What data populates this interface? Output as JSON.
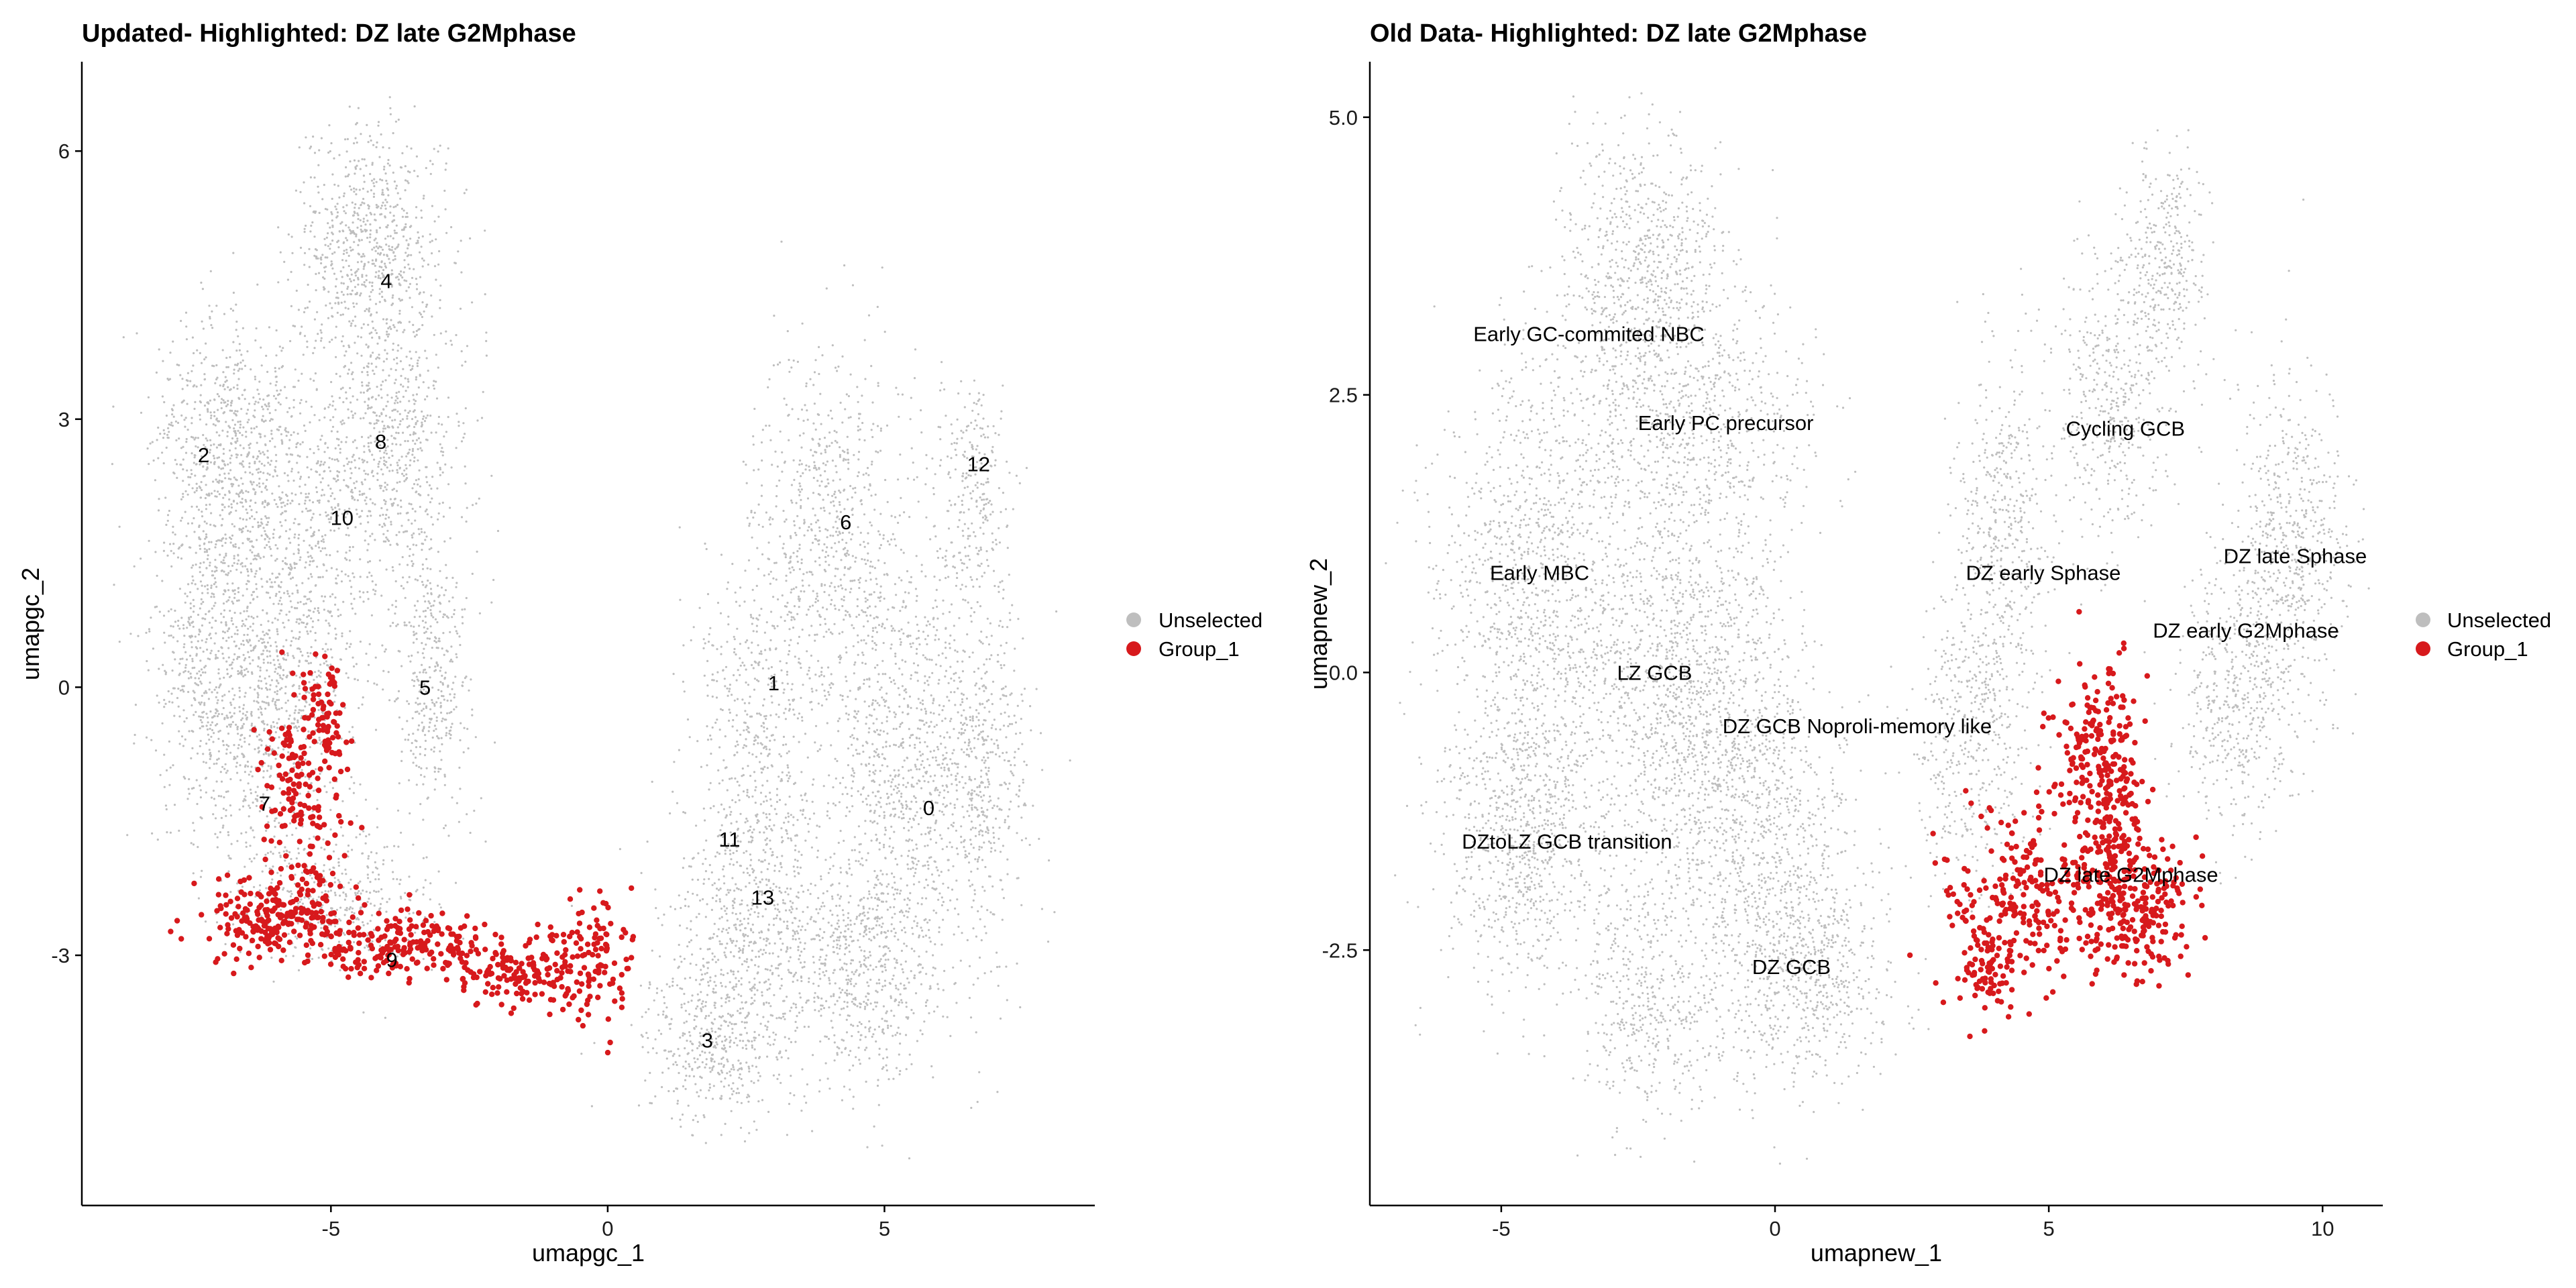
{
  "chart_data": [
    {
      "type": "scatter",
      "title": "Updated- Highlighted: DZ late G2Mphase",
      "xlabel": "umapgc_1",
      "ylabel": "umapgc_2",
      "xlim": [
        -9.5,
        8.8
      ],
      "ylim": [
        -5.8,
        7.0
      ],
      "x_ticks": [
        -5,
        0,
        5
      ],
      "y_ticks": [
        -3,
        0,
        3,
        6
      ],
      "grid": false,
      "legend_position": "right",
      "legend": [
        {
          "label": "Unselected",
          "color": "#BEBEBE"
        },
        {
          "label": "Group_1",
          "color": "#D7191C"
        }
      ],
      "cluster_labels": [
        {
          "text": "0",
          "x": 5.8,
          "y": -1.35
        },
        {
          "text": "1",
          "x": 3.0,
          "y": 0.05
        },
        {
          "text": "2",
          "x": -7.3,
          "y": 2.6
        },
        {
          "text": "3",
          "x": 1.8,
          "y": -3.95
        },
        {
          "text": "4",
          "x": -4.0,
          "y": 4.55
        },
        {
          "text": "5",
          "x": -3.3,
          "y": 0.0
        },
        {
          "text": "6",
          "x": 4.3,
          "y": 1.85
        },
        {
          "text": "7",
          "x": -6.2,
          "y": -1.3
        },
        {
          "text": "8",
          "x": -4.1,
          "y": 2.75
        },
        {
          "text": "9",
          "x": -3.9,
          "y": -3.05
        },
        {
          "text": "10",
          "x": -4.8,
          "y": 1.9
        },
        {
          "text": "11",
          "x": 2.2,
          "y": -1.7
        },
        {
          "text": "12",
          "x": 6.7,
          "y": 2.5
        },
        {
          "text": "13",
          "x": 2.8,
          "y": -2.35
        }
      ],
      "highlight_series": "Group_1",
      "highlight_region": "clusters 7 and 9 (lower-left band)"
    },
    {
      "type": "scatter",
      "title": "Old Data- Highlighted: DZ late G2Mphase",
      "xlabel": "umapnew_1",
      "ylabel": "umapnew_2",
      "xlim": [
        -7.4,
        11.1
      ],
      "ylim": [
        -4.8,
        5.5
      ],
      "x_ticks": [
        -5,
        0,
        5,
        10
      ],
      "y_ticks": [
        -2.5,
        0.0,
        2.5,
        5.0
      ],
      "x_tick_labels": [
        "-5",
        "0",
        "5",
        "10"
      ],
      "y_tick_labels": [
        "-2.5",
        "0.0",
        "2.5",
        "5.0"
      ],
      "grid": false,
      "legend_position": "right",
      "legend": [
        {
          "label": "Unselected",
          "color": "#BEBEBE"
        },
        {
          "label": "Group_1",
          "color": "#D7191C"
        }
      ],
      "cluster_labels": [
        {
          "text": "Early GC-commited NBC",
          "x": -3.4,
          "y": 3.05
        },
        {
          "text": "Early PC precursor",
          "x": -0.9,
          "y": 2.25
        },
        {
          "text": "Early MBC",
          "x": -4.3,
          "y": 0.9
        },
        {
          "text": "LZ GCB",
          "x": -2.2,
          "y": 0.0
        },
        {
          "text": "DZ GCB Noproli-memory like",
          "x": 1.5,
          "y": -0.48
        },
        {
          "text": "DZtoLZ GCB transition",
          "x": -3.8,
          "y": -1.52
        },
        {
          "text": "DZ GCB",
          "x": 0.3,
          "y": -2.65
        },
        {
          "text": "Cycling GCB",
          "x": 6.4,
          "y": 2.2
        },
        {
          "text": "DZ early  Sphase",
          "x": 4.9,
          "y": 0.9
        },
        {
          "text": "DZ late Sphase",
          "x": 9.5,
          "y": 1.05
        },
        {
          "text": "DZ early G2Mphase",
          "x": 8.6,
          "y": 0.38
        },
        {
          "text": "DZ late G2Mphase",
          "x": 6.5,
          "y": -1.82
        }
      ],
      "highlight_series": "Group_1",
      "highlight_region": "DZ late G2Mphase cluster (lower-right)"
    }
  ]
}
